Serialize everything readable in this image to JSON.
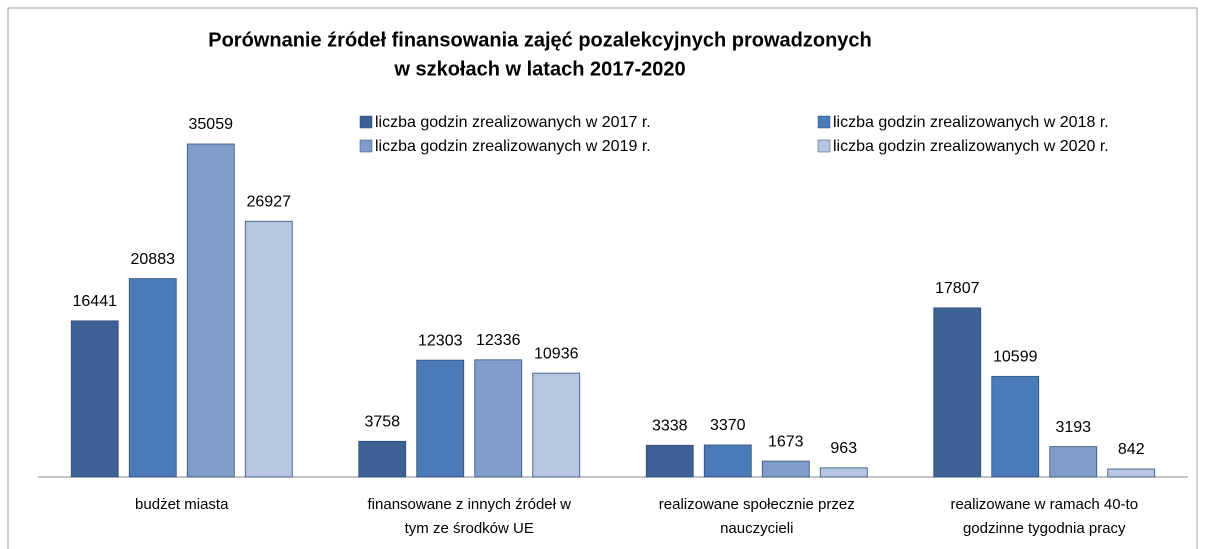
{
  "chart_data": {
    "type": "bar",
    "title": [
      "Porównanie źródeł finansowania zajęć pozalekcyjnych prowadzonych",
      "w szkołach w latach 2017-2020"
    ],
    "categories": [
      "budżet miasta",
      "finansowane z innych źródeł w\ntym ze środków UE",
      "realizowane społecznie przez\nnauczycieli",
      "realizowane w ramach 40-to\ngodzinne tygodnia pracy"
    ],
    "series": [
      {
        "name": "liczba godzin zrealizowanych w 2017 r.",
        "color": "#3d6194",
        "values": [
          16441,
          3758,
          3338,
          17807
        ]
      },
      {
        "name": "liczba godzin zrealizowanych w 2018 r.",
        "color": "#4a7ab7",
        "values": [
          20883,
          12303,
          3370,
          10599
        ]
      },
      {
        "name": "liczba godzin zrealizowanych w 2019 r.",
        "color": "#809dc9",
        "values": [
          35059,
          12336,
          1673,
          3193
        ]
      },
      {
        "name": "liczba godzin zrealizowanych w 2020 r.",
        "color": "#b6c6e0",
        "values": [
          26927,
          10936,
          963,
          842
        ]
      }
    ]
  }
}
